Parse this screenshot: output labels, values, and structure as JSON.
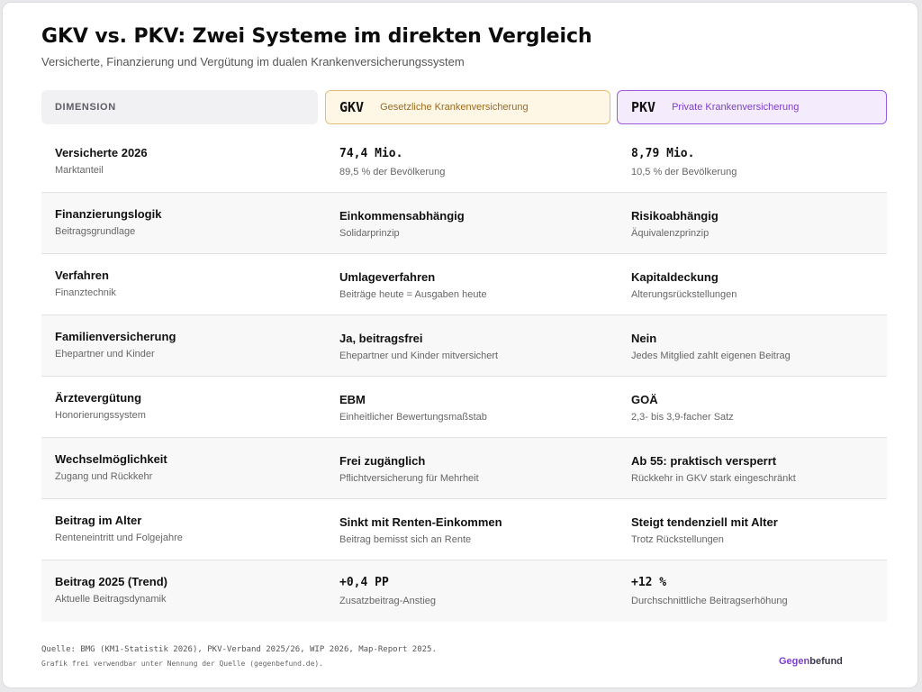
{
  "header": {
    "title": "GKV vs. PKV: Zwei Systeme im direkten Vergleich",
    "subtitle": "Versicherte, Finanzierung und Vergütung im dualen Krankenversicherungssystem"
  },
  "columns": {
    "dimension": "DIMENSION",
    "gkv": {
      "code": "GKV",
      "name": "Gesetzliche Krankenversicherung"
    },
    "pkv": {
      "code": "PKV",
      "name": "Private Krankenversicherung"
    }
  },
  "rows": [
    {
      "label": "Versicherte 2026",
      "sub": "Marktanteil",
      "gkv": {
        "value": "74,4 Mio.",
        "sub": "89,5 % der Bevölkerung"
      },
      "pkv": {
        "value": "8,79 Mio.",
        "sub": "10,5 % der Bevölkerung"
      }
    },
    {
      "label": "Finanzierungslogik",
      "sub": "Beitragsgrundlage",
      "gkv": {
        "value": "Einkommensabhängig",
        "sub": "Solidarprinzip"
      },
      "pkv": {
        "value": "Risikoabhängig",
        "sub": "Äquivalenzprinzip"
      }
    },
    {
      "label": "Verfahren",
      "sub": "Finanztechnik",
      "gkv": {
        "value": "Umlageverfahren",
        "sub": "Beiträge heute = Ausgaben heute"
      },
      "pkv": {
        "value": "Kapitaldeckung",
        "sub": "Alterungsrückstellungen"
      }
    },
    {
      "label": "Familienversicherung",
      "sub": "Ehepartner und Kinder",
      "gkv": {
        "value": "Ja, beitragsfrei",
        "sub": "Ehepartner und Kinder mitversichert"
      },
      "pkv": {
        "value": "Nein",
        "sub": "Jedes Mitglied zahlt eigenen Beitrag"
      }
    },
    {
      "label": "Ärztevergütung",
      "sub": "Honorierungssystem",
      "gkv": {
        "value": "EBM",
        "sub": "Einheitlicher Bewertungsmaßstab"
      },
      "pkv": {
        "value": "GOÄ",
        "sub": "2,3- bis 3,9-facher Satz"
      }
    },
    {
      "label": "Wechselmöglichkeit",
      "sub": "Zugang und Rückkehr",
      "gkv": {
        "value": "Frei zugänglich",
        "sub": "Pflichtversicherung für Mehrheit"
      },
      "pkv": {
        "value": "Ab 55: praktisch versperrt",
        "sub": "Rückkehr in GKV stark eingeschränkt"
      }
    },
    {
      "label": "Beitrag im Alter",
      "sub": "Renteneintritt und Folgejahre",
      "gkv": {
        "value": "Sinkt mit Renten-Einkommen",
        "sub": "Beitrag bemisst sich an Rente"
      },
      "pkv": {
        "value": "Steigt tendenziell mit Alter",
        "sub": "Trotz Rückstellungen"
      }
    },
    {
      "label": "Beitrag 2025 (Trend)",
      "sub": "Aktuelle Beitragsdynamik",
      "gkv": {
        "value": "+0,4 PP",
        "sub": "Zusatzbeitrag-Anstieg"
      },
      "pkv": {
        "value": "+12 %",
        "sub": "Durchschnittliche Beitragserhöhung"
      }
    }
  ],
  "footer": {
    "source": "Quelle: BMG (KM1-Statistik 2026), PKV-Verband 2025/26, WIP 2026, Map-Report 2025.",
    "note": "Grafik frei verwendbar unter Nennung der Quelle (gegenbefund.de).",
    "brand_part1": "Gegen",
    "brand_part2": "befund"
  }
}
